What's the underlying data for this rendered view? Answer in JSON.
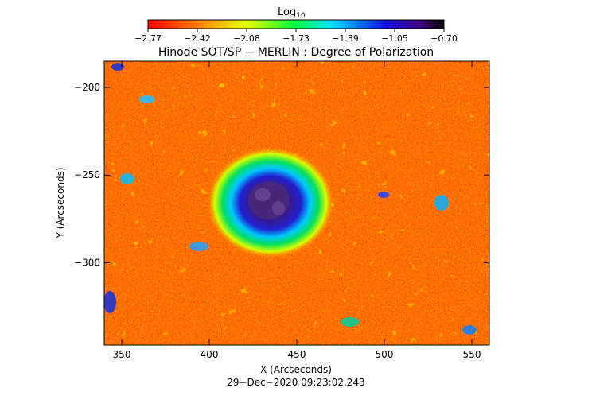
{
  "colorbar": {
    "title": "Log",
    "title_sub": "10",
    "ticks": [
      "−2.77",
      "−2.42",
      "−2.08",
      "−1.73",
      "−1.39",
      "−1.05",
      "−0.70"
    ],
    "colors": [
      "#ff0000",
      "#ff7f00",
      "#ffff00",
      "#00ff00",
      "#00ffff",
      "#0000ff",
      "#000000"
    ]
  },
  "plot": {
    "title": "Hinode SOT/SP − MERLIN : Degree of Polarization",
    "x_axis": {
      "label": "X (Arcseconds)",
      "range": [
        340,
        560
      ],
      "ticks": [
        "350",
        "400",
        "450",
        "500",
        "550"
      ],
      "tick_values": [
        350,
        400,
        450,
        500,
        550
      ]
    },
    "y_axis": {
      "label": "Y (Arcseconds)",
      "range": [
        -347,
        -185
      ],
      "ticks": [
        "−200",
        "−250",
        "−300"
      ],
      "tick_values": [
        -200,
        -250,
        -300
      ]
    },
    "timestamp": "29−Dec−2020 09:23:02.243"
  }
}
